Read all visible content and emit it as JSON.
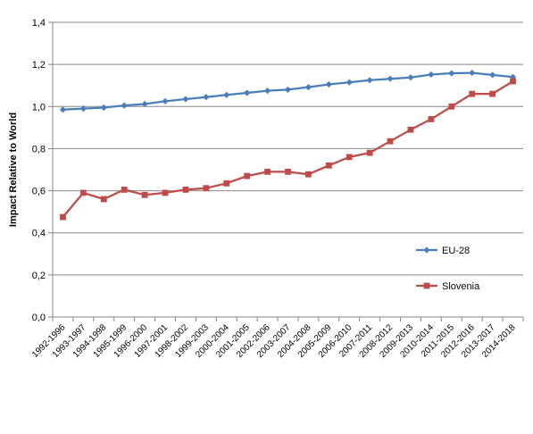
{
  "chart_data": {
    "type": "line",
    "title": "",
    "xlabel": "",
    "ylabel": "Impact Relative to World",
    "ylim": [
      0,
      1.4
    ],
    "yticks": [
      "0,0",
      "0,2",
      "0,4",
      "0,6",
      "0,8",
      "1,0",
      "1,2",
      "1,4"
    ],
    "grid": true,
    "legend_position": "right",
    "categories": [
      "1992-1996",
      "1993-1997",
      "1994-1998",
      "1995-1999",
      "1996-2000",
      "1997-2001",
      "1998-2002",
      "1999-2003",
      "2000-2004",
      "2001-2005",
      "2002-2006",
      "2003-2007",
      "2004-2008",
      "2005-2009",
      "2006-2010",
      "2007-2011",
      "2008-2012",
      "2009-2013",
      "2010-2014",
      "2011-2015",
      "2012-2016",
      "2013-2017",
      "2014-2018"
    ],
    "series": [
      {
        "name": "EU-28",
        "color": "#4A7EBB",
        "marker": "diamond",
        "values": [
          0.985,
          0.99,
          0.995,
          1.005,
          1.012,
          1.025,
          1.035,
          1.045,
          1.055,
          1.065,
          1.075,
          1.08,
          1.092,
          1.105,
          1.115,
          1.125,
          1.132,
          1.138,
          1.152,
          1.158,
          1.16,
          1.15,
          1.14
        ]
      },
      {
        "name": "Slovenia",
        "color": "#BE4B48",
        "marker": "square",
        "values": [
          0.475,
          0.59,
          0.56,
          0.605,
          0.58,
          0.59,
          0.605,
          0.612,
          0.635,
          0.67,
          0.69,
          0.69,
          0.678,
          0.72,
          0.76,
          0.78,
          0.835,
          0.89,
          0.94,
          1.0,
          1.06,
          1.06,
          1.12
        ]
      }
    ]
  }
}
